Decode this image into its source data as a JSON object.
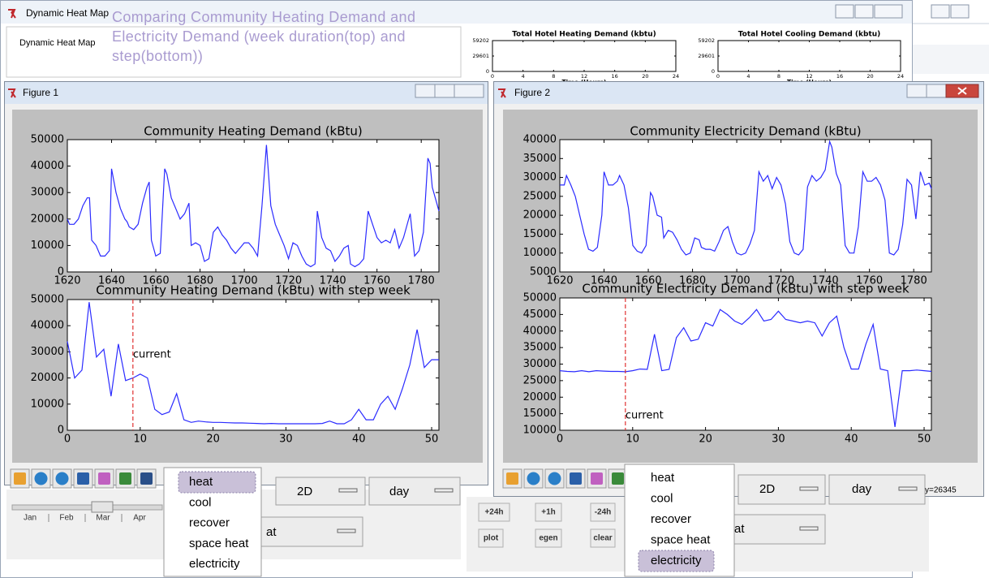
{
  "main_window": {
    "title": "Dynamic Heat Map",
    "tab": "Dynamic Heat Map"
  },
  "annotation": "Comparing Community Heating Demand and Electricity Demand (week duration(top) and step(bottom))",
  "hotel_charts": [
    {
      "type": "line",
      "title": "Total Hotel Heating Demand (kbtu)",
      "x_label": "Time (Hours)",
      "xlim": [
        0,
        24
      ],
      "xticks": [
        0,
        4,
        8,
        12,
        16,
        20,
        24
      ],
      "ylim": [
        0,
        59202
      ],
      "yticks": [
        0,
        29601,
        59202
      ]
    },
    {
      "type": "line",
      "title": "Total Hotel Cooling Demand (kbtu)",
      "x_label": "Time (Hours)",
      "xlim": [
        0,
        24
      ],
      "xticks": [
        0,
        4,
        8,
        12,
        16,
        20,
        24
      ],
      "ylim": [
        0,
        59202
      ],
      "yticks": [
        0,
        29601,
        59202
      ]
    }
  ],
  "figures": [
    {
      "title": "Figure 1",
      "charts": [
        {
          "type": "line",
          "title": "Community Heating Demand (kBtu)",
          "color": "#2b2bff",
          "xlim": [
            1620,
            1788
          ],
          "xticks": [
            1620,
            1640,
            1660,
            1680,
            1700,
            1720,
            1740,
            1760,
            1780
          ],
          "ylim": [
            0,
            50000
          ],
          "yticks": [
            0,
            10000,
            20000,
            30000,
            40000,
            50000
          ],
          "x": [
            1620,
            1621,
            1623,
            1625,
            1627,
            1629,
            1630,
            1631,
            1633,
            1635,
            1637,
            1639,
            1640,
            1642,
            1644,
            1646,
            1647,
            1648,
            1650,
            1652,
            1654,
            1656,
            1657,
            1658,
            1660,
            1662,
            1664,
            1665,
            1667,
            1669,
            1671,
            1673,
            1675,
            1676,
            1678,
            1680,
            1682,
            1684,
            1686,
            1688,
            1690,
            1692,
            1694,
            1696,
            1698,
            1700,
            1702,
            1704,
            1706,
            1708,
            1710,
            1712,
            1714,
            1716,
            1718,
            1720,
            1722,
            1724,
            1726,
            1728,
            1730,
            1732,
            1733,
            1735,
            1737,
            1739,
            1741,
            1743,
            1745,
            1747,
            1748,
            1750,
            1752,
            1754,
            1756,
            1758,
            1760,
            1762,
            1764,
            1766,
            1768,
            1770,
            1772,
            1774,
            1775,
            1777,
            1779,
            1781,
            1783,
            1784,
            1785,
            1787,
            1788
          ],
          "values": [
            20000,
            18000,
            18000,
            20000,
            25000,
            28000,
            28000,
            12000,
            10000,
            6000,
            6000,
            8000,
            39000,
            30000,
            24000,
            20000,
            19000,
            17000,
            16000,
            18000,
            26000,
            32000,
            34000,
            12000,
            6000,
            7000,
            39000,
            37000,
            28000,
            24000,
            20000,
            22000,
            26000,
            10000,
            11000,
            10000,
            4000,
            5000,
            15000,
            17000,
            14000,
            12000,
            9000,
            7000,
            9000,
            11000,
            11000,
            9000,
            6000,
            25000,
            48000,
            25000,
            18000,
            14000,
            10000,
            5000,
            11000,
            10000,
            6000,
            3000,
            2000,
            3000,
            23000,
            13000,
            9000,
            8000,
            4000,
            6000,
            9000,
            10000,
            3000,
            2000,
            3000,
            5000,
            23000,
            18000,
            13000,
            11000,
            12000,
            11000,
            16000,
            9000,
            13000,
            19000,
            22000,
            6000,
            8000,
            15000,
            43000,
            41000,
            32000,
            26000,
            23000
          ]
        },
        {
          "type": "line",
          "title": "Community Heating Demand (kBtu) with step week",
          "color": "#2b2bff",
          "xlim": [
            0,
            51
          ],
          "xticks": [
            0,
            10,
            20,
            30,
            40,
            50
          ],
          "ylim": [
            0,
            50000
          ],
          "yticks": [
            0,
            10000,
            20000,
            30000,
            40000,
            50000
          ],
          "x": [
            0,
            1,
            2,
            3,
            4,
            5,
            6,
            7,
            8,
            9,
            10,
            11,
            12,
            13,
            14,
            15,
            16,
            17,
            18,
            19,
            20,
            21,
            22,
            23,
            24,
            25,
            26,
            27,
            28,
            29,
            30,
            31,
            32,
            33,
            34,
            35,
            36,
            37,
            38,
            39,
            40,
            41,
            42,
            43,
            44,
            45,
            46,
            47,
            48,
            49,
            50,
            51
          ],
          "values": [
            34000,
            20000,
            23000,
            49000,
            28000,
            31000,
            13000,
            33000,
            19000,
            20000,
            21500,
            20000,
            8000,
            6000,
            7000,
            14000,
            4000,
            3000,
            3500,
            3200,
            3000,
            3000,
            2900,
            2800,
            2800,
            2700,
            2600,
            2500,
            2600,
            2500,
            2500,
            2500,
            2500,
            2500,
            2500,
            2600,
            3500,
            2500,
            2500,
            4000,
            8000,
            4000,
            4000,
            10000,
            13000,
            8000,
            16000,
            25000,
            38500,
            24000,
            27000,
            27000
          ],
          "current": {
            "x": 9,
            "label": "current",
            "color": "#e03030"
          }
        }
      ],
      "menu": {
        "items": [
          "heat",
          "cool",
          "recover",
          "space heat",
          "electricity"
        ],
        "selected": 0
      },
      "mode": "2D",
      "period": "day",
      "dropdown": "at",
      "months": [
        "Jan",
        "Feb",
        "Mar",
        "Apr"
      ]
    },
    {
      "title": "Figure 2",
      "charts": [
        {
          "type": "line",
          "title": "Community Electricity Demand (kBtu)",
          "color": "#2b2bff",
          "xlim": [
            1620,
            1788
          ],
          "xticks": [
            1620,
            1640,
            1660,
            1680,
            1700,
            1720,
            1740,
            1760,
            1780
          ],
          "ylim": [
            5000,
            40000
          ],
          "yticks": [
            5000,
            10000,
            15000,
            20000,
            25000,
            30000,
            35000,
            40000
          ],
          "x": [
            1620,
            1622,
            1623,
            1625,
            1627,
            1629,
            1631,
            1633,
            1635,
            1637,
            1639,
            1640,
            1642,
            1644,
            1646,
            1647,
            1649,
            1651,
            1653,
            1655,
            1657,
            1659,
            1661,
            1662,
            1664,
            1666,
            1667,
            1669,
            1671,
            1673,
            1675,
            1677,
            1679,
            1681,
            1683,
            1684,
            1686,
            1688,
            1690,
            1692,
            1694,
            1696,
            1698,
            1700,
            1702,
            1704,
            1706,
            1708,
            1710,
            1712,
            1714,
            1716,
            1718,
            1720,
            1722,
            1724,
            1726,
            1728,
            1730,
            1732,
            1734,
            1736,
            1738,
            1740,
            1742,
            1743,
            1745,
            1747,
            1749,
            1751,
            1753,
            1755,
            1757,
            1759,
            1761,
            1763,
            1765,
            1767,
            1769,
            1771,
            1773,
            1775,
            1777,
            1779,
            1781,
            1783,
            1785,
            1787,
            1788
          ],
          "values": [
            28000,
            28000,
            30500,
            28000,
            25000,
            20000,
            15000,
            11000,
            10500,
            11500,
            20000,
            31500,
            28000,
            28000,
            29000,
            30500,
            28000,
            22000,
            12000,
            10500,
            10000,
            12000,
            26000,
            25000,
            20000,
            19500,
            14000,
            16000,
            15500,
            13500,
            11000,
            9500,
            10000,
            14000,
            13500,
            11500,
            11000,
            11000,
            10500,
            13000,
            16000,
            17000,
            13000,
            10000,
            9500,
            10000,
            12500,
            16000,
            31500,
            29000,
            30500,
            27000,
            30000,
            28000,
            23000,
            13000,
            10000,
            9500,
            11000,
            27500,
            30500,
            29000,
            30000,
            32000,
            39500,
            38000,
            31000,
            28000,
            12000,
            10000,
            10000,
            17000,
            31500,
            29000,
            29000,
            30000,
            28000,
            24000,
            10000,
            9500,
            11000,
            17500,
            29500,
            28000,
            19000,
            31500,
            28000,
            28500,
            27000
          ]
        },
        {
          "type": "line",
          "title": "Community Electricity Demand (kBtu) with step week",
          "color": "#2b2bff",
          "xlim": [
            0,
            51
          ],
          "xticks": [
            0,
            10,
            20,
            30,
            40,
            50
          ],
          "ylim": [
            10000,
            50000
          ],
          "yticks": [
            10000,
            15000,
            20000,
            25000,
            30000,
            35000,
            40000,
            45000,
            50000
          ],
          "x": [
            0,
            1,
            2,
            3,
            4,
            5,
            6,
            7,
            8,
            9,
            10,
            11,
            12,
            13,
            14,
            15,
            16,
            17,
            18,
            19,
            20,
            21,
            22,
            23,
            24,
            25,
            26,
            27,
            28,
            29,
            30,
            31,
            32,
            33,
            34,
            35,
            36,
            37,
            38,
            39,
            40,
            41,
            42,
            43,
            44,
            45,
            46,
            47,
            48,
            49,
            50,
            51
          ],
          "values": [
            28000,
            27800,
            27700,
            28000,
            27700,
            28000,
            27900,
            27800,
            27800,
            27700,
            28000,
            28500,
            28400,
            39000,
            28000,
            28400,
            38000,
            41000,
            37000,
            37500,
            42500,
            41500,
            46500,
            45000,
            43000,
            42000,
            44000,
            46500,
            43000,
            43500,
            46000,
            43500,
            43000,
            42500,
            43000,
            42500,
            38500,
            42500,
            44500,
            35000,
            28500,
            28500,
            36000,
            42000,
            28500,
            28000,
            11000,
            28000,
            28000,
            28200,
            28000,
            27800
          ],
          "current": {
            "x": 9,
            "label": "current",
            "color": "#e03030"
          }
        }
      ],
      "menu": {
        "items": [
          "heat",
          "cool",
          "recover",
          "space heat",
          "electricity"
        ],
        "selected": 4
      },
      "mode": "2D",
      "period": "day",
      "dropdown": "at",
      "buttons": [
        "+24h",
        "+1h",
        "-24h",
        "plot",
        "egen",
        "clear"
      ],
      "status": "y=26345"
    }
  ]
}
